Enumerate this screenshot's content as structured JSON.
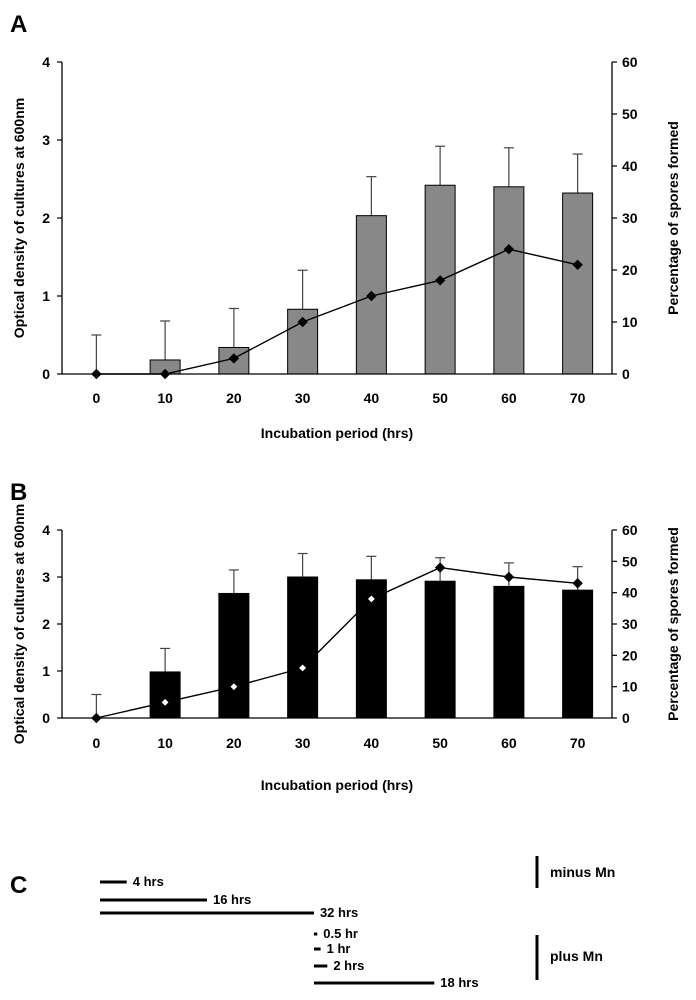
{
  "chart_data": [
    {
      "panel": "A",
      "type": "bar",
      "categories": [
        "0",
        "10",
        "20",
        "30",
        "40",
        "50",
        "60",
        "70"
      ],
      "xlabel": "Incubation period (hrs)",
      "ylabel": "Optical density of cultures at 600nm",
      "ylim": [
        0,
        4
      ],
      "y_ticks": [
        "0",
        "1",
        "2",
        "3",
        "4"
      ],
      "ylabel_right": "Percentage of spores formed",
      "ylim_right": [
        0,
        60
      ],
      "y_ticks_right": [
        "0",
        "10",
        "20",
        "30",
        "40",
        "50",
        "60"
      ],
      "bar_color": "#888888",
      "series": [
        {
          "name": "Optical density",
          "axis": "left",
          "kind": "bar",
          "values": [
            0,
            0.18,
            0.34,
            0.83,
            2.03,
            2.42,
            2.4,
            2.32
          ],
          "errors": [
            0.5,
            0.5,
            0.5,
            0.5,
            0.5,
            0.5,
            0.5,
            0.5
          ]
        },
        {
          "name": "Percentage of spores formed",
          "axis": "right",
          "kind": "line",
          "marker": "filled-diamond",
          "values": [
            0,
            0,
            3,
            10,
            15,
            18,
            24,
            21
          ]
        }
      ]
    },
    {
      "panel": "B",
      "type": "bar",
      "categories": [
        "0",
        "10",
        "20",
        "30",
        "40",
        "50",
        "60",
        "70"
      ],
      "xlabel": "Incubation period (hrs)",
      "ylabel": "Optical density of cultures at 600nm",
      "ylim": [
        0,
        4
      ],
      "y_ticks": [
        "0",
        "1",
        "2",
        "3",
        "4"
      ],
      "ylabel_right": "Percentage of spores formed",
      "ylim_right": [
        0,
        60
      ],
      "y_ticks_right": [
        "0",
        "10",
        "20",
        "30",
        "40",
        "50",
        "60"
      ],
      "bar_color": "#000000",
      "series": [
        {
          "name": "Optical density",
          "axis": "left",
          "kind": "bar",
          "values": [
            0,
            0.98,
            2.65,
            3.0,
            2.94,
            2.91,
            2.8,
            2.72
          ],
          "errors": [
            0.5,
            0.5,
            0.5,
            0.5,
            0.5,
            0.5,
            0.5,
            0.5
          ]
        },
        {
          "name": "Percentage of spores formed",
          "axis": "right",
          "kind": "line",
          "marker": "diamond",
          "values": [
            0,
            5,
            10,
            16,
            38,
            48,
            45,
            43
          ]
        }
      ]
    }
  ],
  "panel_c": {
    "letter": "C",
    "minus_label": "minus Mn",
    "plus_label": "plus Mn",
    "timeline_scale": {
      "start_hr": 0,
      "end_hr": 70
    },
    "bars": [
      {
        "label": "4 hrs",
        "start_hr": 0,
        "end_hr": 4,
        "group": "minus"
      },
      {
        "label": "16 hrs",
        "start_hr": 0,
        "end_hr": 16,
        "group": "minus"
      },
      {
        "label": "32 hrs",
        "start_hr": 0,
        "end_hr": 32,
        "group": "minus"
      },
      {
        "label": "0.5 hr",
        "start_hr": 32,
        "end_hr": 32.5,
        "group": "plus"
      },
      {
        "label": "1 hr",
        "start_hr": 32,
        "end_hr": 33,
        "group": "plus"
      },
      {
        "label": "2 hrs",
        "start_hr": 32,
        "end_hr": 34,
        "group": "plus"
      },
      {
        "label": "18 hrs",
        "start_hr": 32,
        "end_hr": 50,
        "group": "plus"
      }
    ]
  }
}
